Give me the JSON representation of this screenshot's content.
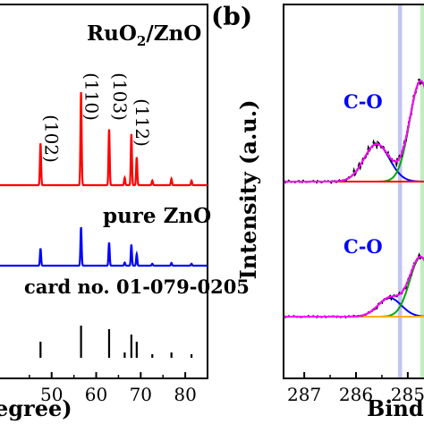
{
  "chart_data": [
    {
      "panel_label": "",
      "type": "line",
      "title": "",
      "xlabel_visible": "egree)",
      "ylabel": "",
      "xlim": [
        38,
        85
      ],
      "xticks": [
        50,
        60,
        70,
        80
      ],
      "grid": false,
      "annotations": [
        "RuO2/ZnO",
        "pure ZnO",
        "card no. 01-079-0205"
      ],
      "peaks": [
        {
          "label": "(102)",
          "x": 47.5,
          "height": 0.45
        },
        {
          "label": "(110)",
          "x": 56.6,
          "height": 1.0
        },
        {
          "label": "(103)",
          "x": 62.9,
          "height": 0.6
        },
        {
          "label": "(112)",
          "x": 67.9,
          "height": 0.55
        }
      ],
      "series": [
        {
          "name": "RuO2/ZnO",
          "color": "#ff0000",
          "baseline": 0,
          "peaks": [
            {
              "x": 47.5,
              "h": 0.45
            },
            {
              "x": 56.6,
              "h": 1.0
            },
            {
              "x": 62.9,
              "h": 0.6
            },
            {
              "x": 66.4,
              "h": 0.08
            },
            {
              "x": 67.9,
              "h": 0.55
            },
            {
              "x": 69.1,
              "h": 0.3
            },
            {
              "x": 72.6,
              "h": 0.05
            },
            {
              "x": 76.9,
              "h": 0.07
            },
            {
              "x": 81.4,
              "h": 0.05
            }
          ]
        },
        {
          "name": "pure ZnO",
          "color": "#0000ff",
          "baseline": 0,
          "peaks": [
            {
              "x": 47.5,
              "h": 0.45
            },
            {
              "x": 56.6,
              "h": 1.0
            },
            {
              "x": 62.9,
              "h": 0.6
            },
            {
              "x": 66.4,
              "h": 0.08
            },
            {
              "x": 67.9,
              "h": 0.55
            },
            {
              "x": 69.1,
              "h": 0.3
            },
            {
              "x": 72.6,
              "h": 0.05
            },
            {
              "x": 76.9,
              "h": 0.07
            },
            {
              "x": 81.4,
              "h": 0.05
            }
          ]
        }
      ],
      "reference_sticks": [
        {
          "x": 47.5,
          "h": 0.45
        },
        {
          "x": 56.6,
          "h": 0.9
        },
        {
          "x": 62.9,
          "h": 0.8
        },
        {
          "x": 66.4,
          "h": 0.15
        },
        {
          "x": 67.9,
          "h": 0.65
        },
        {
          "x": 69.1,
          "h": 0.45
        },
        {
          "x": 72.6,
          "h": 0.1
        },
        {
          "x": 76.9,
          "h": 0.15
        },
        {
          "x": 81.4,
          "h": 0.1
        }
      ]
    },
    {
      "panel_label": "(b)",
      "type": "line",
      "title": "",
      "xlabel_visible": "Bind",
      "ylabel": "Intensity (a.u.)",
      "xlim": [
        287.4,
        284.6
      ],
      "xticks": [
        287,
        286,
        285
      ],
      "x_reversed": true,
      "grid": false,
      "highlight_bands": [
        {
          "center": 285.15,
          "width": 0.08,
          "color": "#a9a9ef"
        },
        {
          "center": 284.7,
          "width": 0.12,
          "color": "#a8e6a8"
        }
      ],
      "annotations": [
        "C-O",
        "C-O"
      ],
      "subplots": [
        {
          "name": "upper",
          "components": [
            {
              "name": "C-O",
              "color": "#0000ff",
              "center": 285.6,
              "sigma": 0.35,
              "amp": 0.28
            },
            {
              "name": "green",
              "color": "#00aa00",
              "center": 284.75,
              "sigma": 0.3,
              "amp": 0.75
            },
            {
              "name": "red",
              "color": "#ff0000",
              "center": 283.8,
              "sigma": 0.3,
              "amp": 0.6
            }
          ]
        },
        {
          "name": "lower",
          "components": [
            {
              "name": "C-O",
              "color": "#0000ff",
              "center": 285.35,
              "sigma": 0.32,
              "amp": 0.22
            },
            {
              "name": "green",
              "color": "#00aa00",
              "center": 284.75,
              "sigma": 0.3,
              "amp": 0.7
            },
            {
              "name": "orange",
              "color": "#ffb000",
              "center": 283.8,
              "sigma": 0.3,
              "amp": 0.3
            }
          ]
        }
      ]
    }
  ],
  "text": {
    "label_ruo2": "RuO",
    "label_ruo2_sub": "2",
    "label_ruo2_tail": "/ZnO",
    "label_pure": "pure ZnO",
    "label_card": "card no. 01-079-0205",
    "xlabel_a": "egree)",
    "panel_b": "(b)",
    "ylabel_b": "Intensity (a.u.)",
    "xlabel_b": "Bind",
    "co_upper": "C-O",
    "co_lower": "C-O"
  },
  "colors": {
    "red": "#ff0000",
    "blue": "#0000ff",
    "green": "#00aa00",
    "magenta": "#ff00ff",
    "orange": "#ffb000",
    "black": "#000000",
    "band_blue": "#a9a9ef",
    "band_green": "#a8e6a8"
  }
}
